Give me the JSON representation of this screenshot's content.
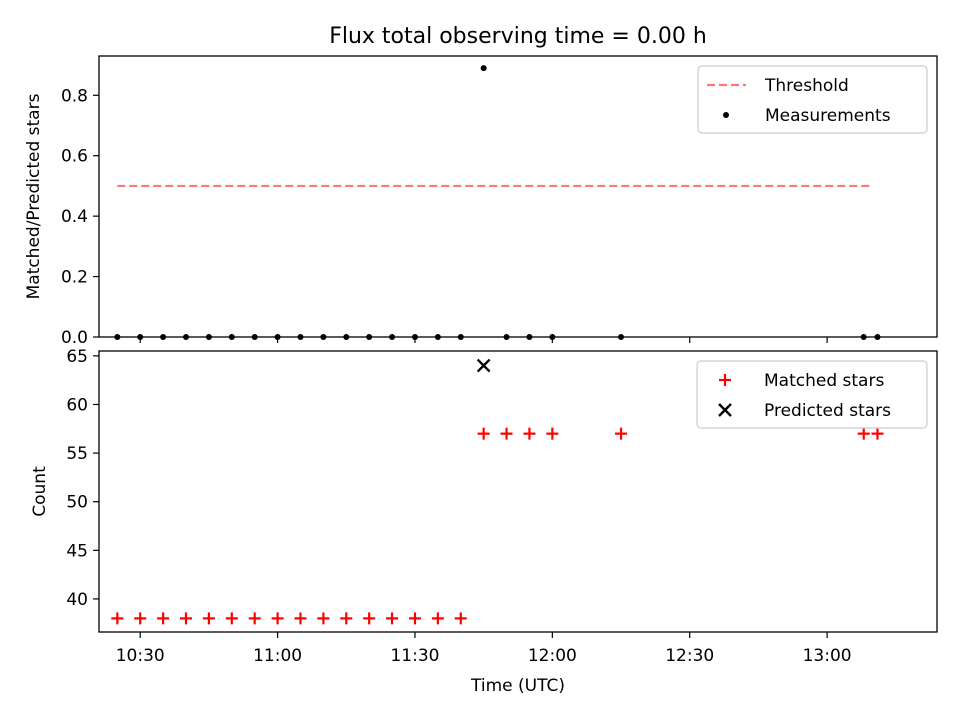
{
  "figure": {
    "title": "Flux total observing time = 0.00 h",
    "colors": {
      "threshold": "#ff7777",
      "measurement": "#000000",
      "matched": "#ff0000",
      "predicted": "#000000"
    }
  },
  "chart_data": [
    {
      "type": "scatter",
      "name": "ratio-panel",
      "ylabel": "Matched/Predicted stars",
      "xlabel": "",
      "xlim": [
        "10:21",
        "13:24"
      ],
      "ylim": [
        0,
        0.93
      ],
      "yticks": [
        "0.0",
        "0.2",
        "0.4",
        "0.6",
        "0.8"
      ],
      "legend": {
        "position": "top-right",
        "entries": [
          "Threshold",
          "Measurements"
        ]
      },
      "series": [
        {
          "name": "Threshold",
          "kind": "dashed-line",
          "x": [
            "10:25",
            "13:10"
          ],
          "y": [
            0.5,
            0.5
          ]
        },
        {
          "name": "Measurements",
          "kind": "dots",
          "x": [
            "10:25",
            "10:30",
            "10:35",
            "10:40",
            "10:45",
            "10:50",
            "10:55",
            "11:00",
            "11:05",
            "11:10",
            "11:15",
            "11:20",
            "11:25",
            "11:30",
            "11:35",
            "11:40",
            "11:45",
            "11:50",
            "11:55",
            "12:00",
            "12:15",
            "13:08",
            "13:11"
          ],
          "y": [
            0,
            0,
            0,
            0,
            0,
            0,
            0,
            0,
            0,
            0,
            0,
            0,
            0,
            0,
            0,
            0,
            0.89,
            0,
            0,
            0,
            0,
            0,
            0
          ]
        }
      ]
    },
    {
      "type": "scatter",
      "name": "count-panel",
      "ylabel": "Count",
      "xlabel": "Time (UTC)",
      "xlim": [
        "10:21",
        "13:24"
      ],
      "ylim": [
        36.6,
        65.5
      ],
      "yticks": [
        "40",
        "45",
        "50",
        "55",
        "60",
        "65"
      ],
      "xticks": [
        "10:30",
        "11:00",
        "11:30",
        "12:00",
        "12:30",
        "13:00"
      ],
      "legend": {
        "position": "top-right",
        "entries": [
          "Matched stars",
          "Predicted stars"
        ]
      },
      "series": [
        {
          "name": "Matched stars",
          "kind": "plus",
          "x": [
            "10:25",
            "10:30",
            "10:35",
            "10:40",
            "10:45",
            "10:50",
            "10:55",
            "11:00",
            "11:05",
            "11:10",
            "11:15",
            "11:20",
            "11:25",
            "11:30",
            "11:35",
            "11:40",
            "11:45",
            "11:50",
            "11:55",
            "12:00",
            "12:15",
            "13:08",
            "13:11"
          ],
          "y": [
            38,
            38,
            38,
            38,
            38,
            38,
            38,
            38,
            38,
            38,
            38,
            38,
            38,
            38,
            38,
            38,
            57,
            57,
            57,
            57,
            57,
            57,
            57
          ]
        },
        {
          "name": "Predicted stars",
          "kind": "cross",
          "x": [
            "11:45"
          ],
          "y": [
            64
          ]
        }
      ]
    }
  ]
}
